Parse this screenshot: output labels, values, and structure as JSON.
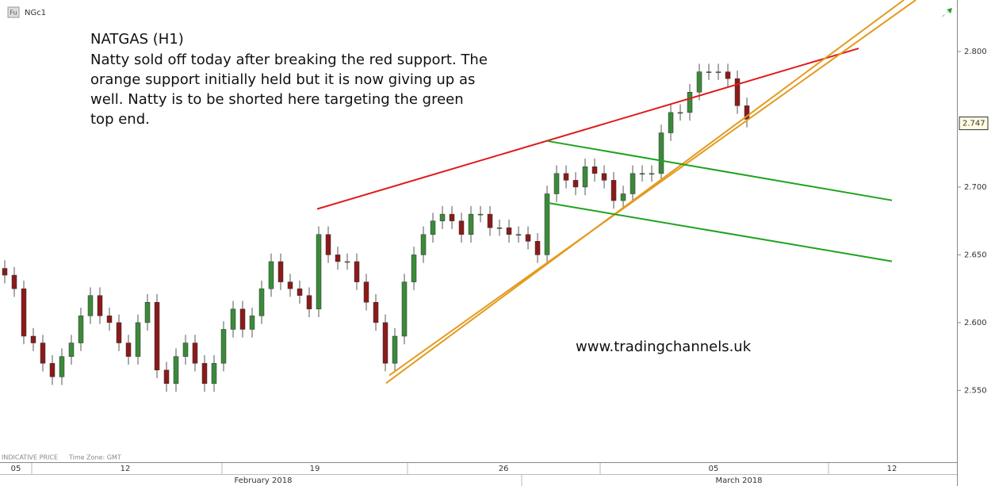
{
  "chart_data": {
    "type": "candlestick",
    "symbol": "NGc1",
    "title": "NATGAS (H1)",
    "annotation_lines": [
      "Natty sold off today after breaking the red support. The",
      "orange support initially held but it is now giving up as",
      "well. Natty is to be shorted here targeting the green",
      "top end."
    ],
    "watermark": "www.tradingchannels.uk",
    "footer": [
      "INDICATIVE PRICE",
      "Time Zone: GMT"
    ],
    "months": [
      "February 2018",
      "March 2018"
    ],
    "up_color": "#3a8a3a",
    "down_color": "#8b1a1a",
    "open": [
      2.64,
      2.635,
      2.625,
      2.59,
      2.585,
      2.57,
      2.56,
      2.575,
      2.585,
      2.605,
      2.62,
      2.605,
      2.6,
      2.585,
      2.575,
      2.6,
      2.615,
      2.565,
      2.555,
      2.575,
      2.585,
      2.57,
      2.555,
      2.57,
      2.595,
      2.61,
      2.595,
      2.605,
      2.625,
      2.645,
      2.63,
      2.625,
      2.62,
      2.61,
      2.665,
      2.65,
      2.645,
      2.645,
      2.63,
      2.615,
      2.6,
      2.57,
      2.59,
      2.63,
      2.65,
      2.665,
      2.675,
      2.68,
      2.675,
      2.665,
      2.68,
      2.68,
      2.67,
      2.67,
      2.665,
      2.665,
      2.66,
      2.65,
      2.695,
      2.71,
      2.705,
      2.7,
      2.715,
      2.71,
      2.705,
      2.69,
      2.695,
      2.71,
      2.71,
      2.71,
      2.74,
      2.755,
      2.755,
      2.77,
      2.785,
      2.785,
      2.785,
      2.78,
      2.76
    ],
    "high": [
      2.646,
      2.641,
      2.631,
      2.596,
      2.591,
      2.576,
      2.581,
      2.591,
      2.611,
      2.626,
      2.626,
      2.611,
      2.606,
      2.591,
      2.606,
      2.621,
      2.621,
      2.571,
      2.581,
      2.591,
      2.591,
      2.576,
      2.576,
      2.601,
      2.616,
      2.616,
      2.611,
      2.631,
      2.651,
      2.651,
      2.636,
      2.631,
      2.626,
      2.671,
      2.671,
      2.656,
      2.651,
      2.651,
      2.636,
      2.621,
      2.606,
      2.596,
      2.636,
      2.656,
      2.671,
      2.681,
      2.686,
      2.686,
      2.681,
      2.686,
      2.686,
      2.686,
      2.676,
      2.676,
      2.671,
      2.671,
      2.666,
      2.701,
      2.716,
      2.716,
      2.711,
      2.721,
      2.721,
      2.716,
      2.711,
      2.701,
      2.716,
      2.716,
      2.716,
      2.746,
      2.761,
      2.761,
      2.776,
      2.791,
      2.791,
      2.791,
      2.791,
      2.786,
      2.766
    ],
    "low": [
      2.629,
      2.619,
      2.584,
      2.579,
      2.564,
      2.554,
      2.554,
      2.569,
      2.579,
      2.599,
      2.599,
      2.594,
      2.579,
      2.569,
      2.569,
      2.594,
      2.559,
      2.549,
      2.549,
      2.569,
      2.564,
      2.549,
      2.549,
      2.564,
      2.589,
      2.589,
      2.589,
      2.599,
      2.619,
      2.624,
      2.619,
      2.614,
      2.604,
      2.604,
      2.644,
      2.639,
      2.639,
      2.624,
      2.609,
      2.594,
      2.564,
      2.564,
      2.584,
      2.624,
      2.644,
      2.659,
      2.669,
      2.669,
      2.659,
      2.659,
      2.674,
      2.664,
      2.664,
      2.659,
      2.659,
      2.654,
      2.644,
      2.644,
      2.689,
      2.699,
      2.694,
      2.694,
      2.704,
      2.699,
      2.684,
      2.684,
      2.689,
      2.704,
      2.704,
      2.704,
      2.734,
      2.749,
      2.749,
      2.764,
      2.779,
      2.779,
      2.774,
      2.754,
      2.744
    ],
    "close": [
      2.635,
      2.625,
      2.59,
      2.585,
      2.57,
      2.56,
      2.575,
      2.585,
      2.605,
      2.62,
      2.605,
      2.6,
      2.585,
      2.575,
      2.6,
      2.615,
      2.565,
      2.555,
      2.575,
      2.585,
      2.57,
      2.555,
      2.57,
      2.595,
      2.61,
      2.595,
      2.605,
      2.625,
      2.645,
      2.63,
      2.625,
      2.62,
      2.61,
      2.665,
      2.65,
      2.645,
      2.645,
      2.63,
      2.615,
      2.6,
      2.57,
      2.59,
      2.63,
      2.65,
      2.665,
      2.675,
      2.68,
      2.675,
      2.665,
      2.68,
      2.68,
      2.67,
      2.67,
      2.665,
      2.665,
      2.66,
      2.65,
      2.695,
      2.71,
      2.705,
      2.7,
      2.715,
      2.71,
      2.705,
      2.69,
      2.695,
      2.71,
      2.71,
      2.71,
      2.74,
      2.755,
      2.755,
      2.77,
      2.785,
      2.785,
      2.785,
      2.78,
      2.76,
      2.75
    ],
    "last_price": 2.747,
    "xlim": [
      -0.5,
      100.08
    ],
    "xticks": [
      {
        "value": 1.17,
        "label": "05"
      },
      {
        "value": 12.67,
        "label": "12"
      },
      {
        "value": 32.58,
        "label": "19"
      },
      {
        "value": 52.42,
        "label": "26"
      },
      {
        "value": 74.5,
        "label": "05"
      },
      {
        "value": 93.25,
        "label": "12"
      }
    ],
    "ylim": [
      2.497,
      2.838
    ],
    "yticks": [
      {
        "value": 2.55,
        "label": "2.550"
      },
      {
        "value": 2.6,
        "label": "2.600"
      },
      {
        "value": 2.65,
        "label": "2.650"
      },
      {
        "value": 2.7,
        "label": "2.700"
      },
      {
        "value": 2.8,
        "label": "2.800"
      }
    ],
    "trend_lines": [
      {
        "color": "#e01b1b",
        "x": [
          32.83,
          89.75
        ],
        "y": [
          2.6838,
          2.8023
        ]
      },
      {
        "color": "#e39a1e",
        "x": [
          40.08,
          94.5
        ],
        "y": [
          2.5553,
          2.838
        ]
      },
      {
        "color": "#e39a1e",
        "x": [
          40.42,
          95.75
        ],
        "y": [
          2.5611,
          2.838
        ]
      },
      {
        "color": "#1fa31f",
        "x": [
          57,
          93.25
        ],
        "y": [
          2.734,
          2.6902
        ]
      },
      {
        "color": "#1fa31f",
        "x": [
          57,
          93.25
        ],
        "y": [
          2.6884,
          2.6452
        ]
      }
    ]
  }
}
